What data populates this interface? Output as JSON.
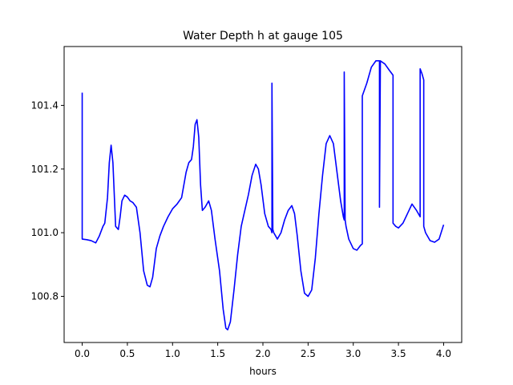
{
  "chart_data": {
    "type": "line",
    "title": "Water Depth h at gauge 105",
    "xlabel": "hours",
    "ylabel": "",
    "xlim": [
      -0.2,
      4.2
    ],
    "ylim": [
      100.655,
      101.585
    ],
    "x_ticks": [
      0.0,
      0.5,
      1.0,
      1.5,
      2.0,
      2.5,
      3.0,
      3.5,
      4.0
    ],
    "x_tick_labels": [
      "0.0",
      "0.5",
      "1.0",
      "1.5",
      "2.0",
      "2.5",
      "3.0",
      "3.5",
      "4.0"
    ],
    "y_ticks": [
      100.8,
      101.0,
      101.2,
      101.4
    ],
    "y_tick_labels": [
      "100.8",
      "101.0",
      "101.2",
      "101.4"
    ],
    "grid": false,
    "line_color": "#0000ff",
    "series": [
      {
        "x": [
          0.0,
          0.0,
          0.05,
          0.1,
          0.15,
          0.19,
          0.23,
          0.25,
          0.28,
          0.3,
          0.32,
          0.34,
          0.37,
          0.4,
          0.42,
          0.44,
          0.47,
          0.5,
          0.53,
          0.56,
          0.6,
          0.64,
          0.68,
          0.72,
          0.75,
          0.78,
          0.82,
          0.86,
          0.9,
          0.95,
          1.0,
          1.05,
          1.1,
          1.15,
          1.18,
          1.21,
          1.23,
          1.25,
          1.27,
          1.29,
          1.31,
          1.33,
          1.36,
          1.4,
          1.43,
          1.47,
          1.52,
          1.56,
          1.59,
          1.61,
          1.64,
          1.68,
          1.72,
          1.76,
          1.8,
          1.84,
          1.88,
          1.92,
          1.95,
          1.98,
          2.02,
          2.06,
          2.09,
          2.1,
          2.1,
          2.11,
          2.12,
          2.14,
          2.16,
          2.2,
          2.24,
          2.28,
          2.32,
          2.35,
          2.38,
          2.42,
          2.46,
          2.5,
          2.54,
          2.58,
          2.62,
          2.66,
          2.7,
          2.74,
          2.78,
          2.82,
          2.86,
          2.89,
          2.9,
          2.9,
          2.91,
          2.92,
          2.95,
          3.0,
          3.04,
          3.08,
          3.1,
          3.1,
          3.15,
          3.2,
          3.25,
          3.28,
          3.29,
          3.29,
          3.3,
          3.35,
          3.4,
          3.44,
          3.44,
          3.47,
          3.5,
          3.55,
          3.6,
          3.65,
          3.7,
          3.73,
          3.74,
          3.74,
          3.76,
          3.78,
          3.78,
          3.8,
          3.85,
          3.9,
          3.95,
          4.0
        ],
        "y": [
          101.44,
          100.98,
          100.978,
          100.975,
          100.968,
          100.99,
          101.02,
          101.03,
          101.11,
          101.22,
          101.275,
          101.22,
          101.02,
          101.01,
          101.05,
          101.1,
          101.118,
          101.112,
          101.1,
          101.095,
          101.08,
          101.0,
          100.88,
          100.835,
          100.83,
          100.86,
          100.95,
          100.99,
          101.02,
          101.05,
          101.075,
          101.09,
          101.11,
          101.19,
          101.22,
          101.23,
          101.27,
          101.34,
          101.355,
          101.3,
          101.15,
          101.07,
          101.08,
          101.1,
          101.07,
          100.98,
          100.88,
          100.76,
          100.7,
          100.695,
          100.72,
          100.82,
          100.93,
          101.02,
          101.07,
          101.12,
          101.18,
          101.215,
          101.2,
          101.15,
          101.06,
          101.02,
          101.01,
          101.0,
          101.47,
          101.01,
          101.0,
          100.99,
          100.98,
          101.0,
          101.04,
          101.07,
          101.085,
          101.06,
          100.99,
          100.88,
          100.81,
          100.8,
          100.82,
          100.92,
          101.06,
          101.18,
          101.28,
          101.305,
          101.28,
          101.19,
          101.1,
          101.05,
          101.04,
          101.505,
          101.04,
          101.02,
          100.98,
          100.95,
          100.945,
          100.96,
          100.965,
          101.43,
          101.47,
          101.52,
          101.54,
          101.54,
          101.54,
          101.08,
          101.54,
          101.53,
          101.51,
          101.495,
          101.03,
          101.02,
          101.015,
          101.03,
          101.06,
          101.09,
          101.07,
          101.055,
          101.05,
          101.515,
          101.5,
          101.48,
          101.02,
          101.0,
          100.975,
          100.97,
          100.98,
          101.025
        ]
      }
    ]
  }
}
